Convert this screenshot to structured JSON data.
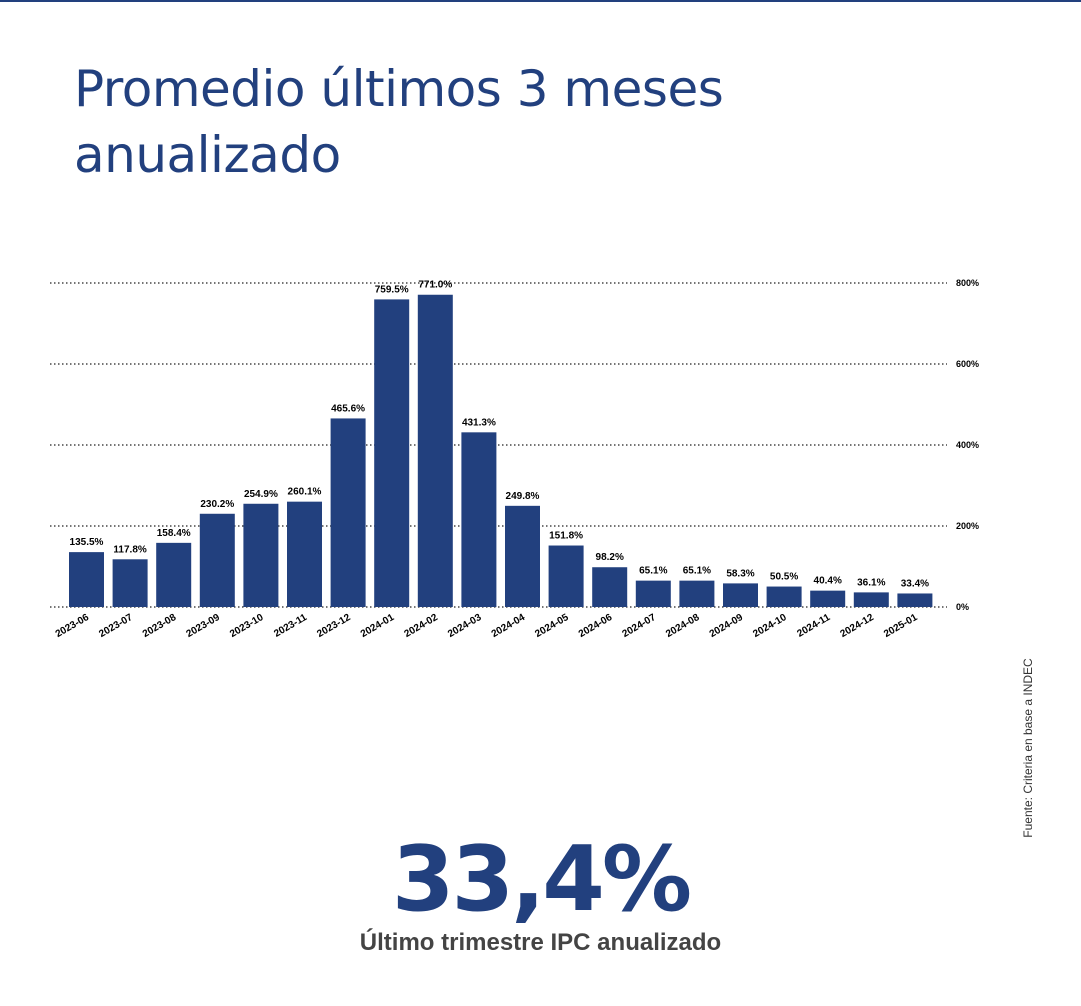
{
  "colors": {
    "accent": "#22407e",
    "bar": "#22407e",
    "text": "#000000",
    "caption": "#444444"
  },
  "header": {
    "title": "Promedio últimos 3 meses anualizado"
  },
  "source": {
    "text": "Fuente: Criteria en base a INDEC"
  },
  "highlight": {
    "value": "33,4%",
    "caption": "Último trimestre IPC anualizado"
  },
  "chart_data": {
    "type": "bar",
    "title": "",
    "xlabel": "",
    "ylabel": "",
    "ylim": [
      0,
      800
    ],
    "yticks": [
      0,
      200,
      400,
      600,
      800
    ],
    "ytick_labels": [
      "0%",
      "200%",
      "400%",
      "600%",
      "800%"
    ],
    "y_axis_side": "right",
    "grid": "horizontal dotted",
    "categories": [
      "2023-06",
      "2023-07",
      "2023-08",
      "2023-09",
      "2023-10",
      "2023-11",
      "2023-12",
      "2024-01",
      "2024-02",
      "2024-03",
      "2024-04",
      "2024-05",
      "2024-06",
      "2024-07",
      "2024-08",
      "2024-09",
      "2024-10",
      "2024-11",
      "2024-12",
      "2025-01"
    ],
    "values": [
      135.5,
      117.8,
      158.4,
      230.2,
      254.9,
      260.1,
      465.6,
      759.5,
      771.0,
      431.3,
      249.8,
      151.8,
      98.2,
      65.1,
      65.1,
      58.3,
      50.5,
      40.4,
      36.1,
      33.4
    ],
    "value_labels": [
      "135.5%",
      "117.8%",
      "158.4%",
      "230.2%",
      "254.9%",
      "260.1%",
      "465.6%",
      "759.5%",
      "771.0%",
      "431.3%",
      "249.8%",
      "151.8%",
      "98.2%",
      "65.1%",
      "65.1%",
      "58.3%",
      "50.5%",
      "40.4%",
      "36.1%",
      "33.4%"
    ]
  }
}
